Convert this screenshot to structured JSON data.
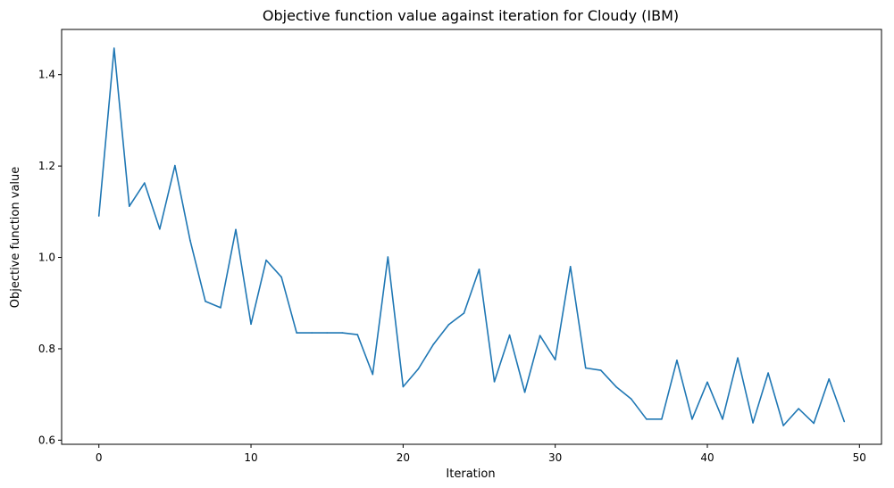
{
  "chart_data": {
    "type": "line",
    "title": "Objective function value against iteration for Cloudy (IBM)",
    "xlabel": "Iteration",
    "ylabel": "Objective function value",
    "xlim": [
      -2.45,
      51.45
    ],
    "ylim": [
      0.591,
      1.499
    ],
    "xticks": [
      0,
      10,
      20,
      30,
      40,
      50
    ],
    "xtick_labels": [
      "0",
      "10",
      "20",
      "30",
      "40",
      "50"
    ],
    "yticks": [
      0.6,
      0.8,
      1.0,
      1.2,
      1.4
    ],
    "ytick_labels": [
      "0.6",
      "0.8",
      "1.0",
      "1.2",
      "1.4"
    ],
    "grid": false,
    "legend": "none",
    "color": "#1f77b4",
    "x": [
      0,
      1,
      2,
      3,
      4,
      5,
      6,
      7,
      8,
      9,
      10,
      11,
      12,
      13,
      14,
      15,
      16,
      17,
      18,
      19,
      20,
      21,
      22,
      23,
      24,
      25,
      26,
      27,
      28,
      29,
      30,
      31,
      32,
      33,
      34,
      35,
      36,
      37,
      38,
      39,
      40,
      41,
      42,
      43,
      44,
      45,
      46,
      47,
      48,
      49
    ],
    "series": [
      {
        "values": [
          1.091,
          1.458,
          1.112,
          1.163,
          1.062,
          1.201,
          1.037,
          0.904,
          0.89,
          1.061,
          0.854,
          0.994,
          0.957,
          0.835,
          0.835,
          0.835,
          0.835,
          0.831,
          0.744,
          1.001,
          0.717,
          0.756,
          0.81,
          0.853,
          0.878,
          0.974,
          0.728,
          0.83,
          0.705,
          0.829,
          0.776,
          0.98,
          0.758,
          0.753,
          0.717,
          0.69,
          0.646,
          0.646,
          0.775,
          0.646,
          0.727,
          0.646,
          0.78,
          0.638,
          0.747,
          0.632,
          0.669,
          0.637,
          0.734,
          0.641
        ]
      }
    ]
  }
}
